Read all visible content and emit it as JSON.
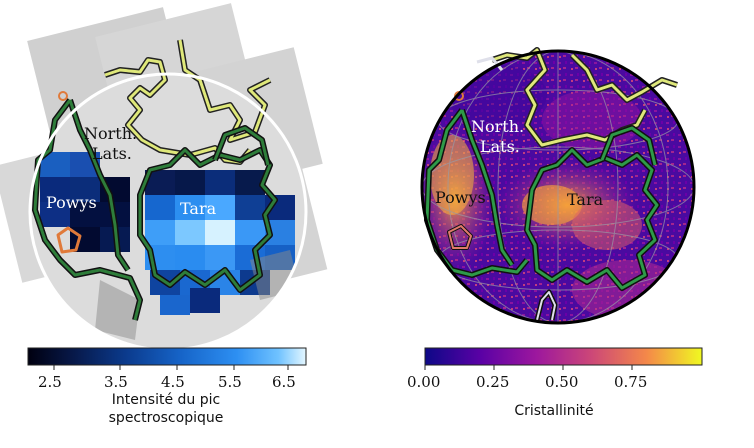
{
  "left_map": {
    "labels": {
      "north_lats_1": "North.",
      "north_lats_2": "Lats.",
      "powys": "Powys",
      "tara": "Tara"
    },
    "colorbar": {
      "colors": [
        "#000010",
        "#081a4a",
        "#0d3a8e",
        "#1565c9",
        "#2a8cf0",
        "#6bc0ff",
        "#d8f3ff"
      ],
      "ticks": [
        "2.5",
        "3.5",
        "4.5",
        "5.5",
        "6.5"
      ],
      "label_line1": "Intensité du pic",
      "label_line2": "spectroscopique"
    }
  },
  "right_map": {
    "labels": {
      "north_lats_1": "North.",
      "north_lats_2": "Lats.",
      "powys": "Powys",
      "tara": "Tara"
    },
    "colorbar": {
      "colors": [
        "#0d0887",
        "#6a00a8",
        "#b12a90",
        "#e16462",
        "#fca636",
        "#f0f921"
      ],
      "ticks": [
        "0.00",
        "0.25",
        "0.50",
        "0.75"
      ],
      "label": "Cristallinité"
    }
  }
}
